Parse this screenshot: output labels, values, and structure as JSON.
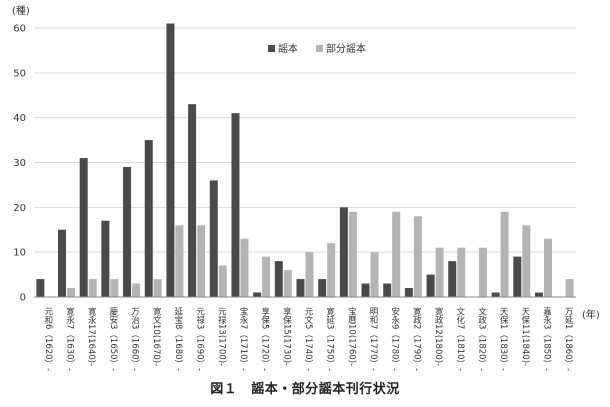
{
  "chart_data": {
    "type": "bar",
    "y_unit_label": "(種)",
    "x_unit_label": "(年)",
    "ylim": [
      0,
      60
    ],
    "yticks": [
      0,
      10,
      20,
      30,
      40,
      50,
      60
    ],
    "grid": true,
    "legend_position": "top-right",
    "categories": [
      "元和6（1620）-",
      "寛永7（1630）-",
      "寛永17(1640)-",
      "慶安3（1650）-",
      "万治3（1660）-",
      "寛文10(1670)-",
      "延宝8（1680）-",
      "元禄3（1690）-",
      "元禄13(1700)-",
      "宝永7（1710）-",
      "享保5（1720）-",
      "享保15(1730)-",
      "元文5（1740）-",
      "寛延3（1750）-",
      "宝暦10(1760)-",
      "明和7（1770）-",
      "安永9（1780）-",
      "寛政2（1790）-",
      "寛政12(1800)-",
      "文化7（1810）-",
      "文政3（1820）-",
      "天保1（1830）-",
      "天保11(1840)-",
      "嘉永3（1850）-",
      "万延1（1860）-"
    ],
    "series": [
      {
        "name": "謡本",
        "color": "#4a4a4a",
        "values": [
          4,
          15,
          31,
          17,
          29,
          35,
          61,
          43,
          26,
          41,
          1,
          8,
          4,
          4,
          20,
          3,
          3,
          2,
          5,
          8,
          0,
          1,
          9,
          1,
          0
        ]
      },
      {
        "name": "部分謡本",
        "color": "#b4b4b4",
        "values": [
          0,
          2,
          4,
          4,
          3,
          4,
          16,
          16,
          7,
          13,
          9,
          6,
          10,
          12,
          19,
          10,
          19,
          18,
          11,
          11,
          11,
          19,
          16,
          13,
          4
        ]
      }
    ]
  },
  "caption": {
    "figure_no": "図１",
    "title": "謡本・部分謡本刊行状況"
  }
}
